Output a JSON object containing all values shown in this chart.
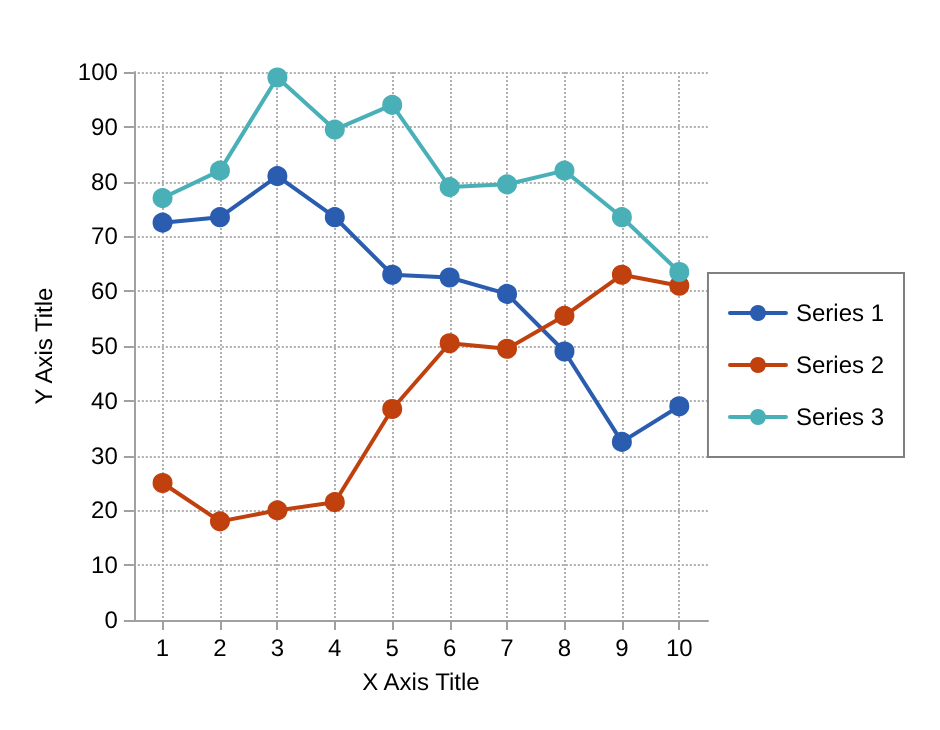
{
  "chart_data": {
    "type": "line",
    "xlabel": "X Axis Title",
    "ylabel": "Y Axis Title",
    "x": [
      1,
      2,
      3,
      4,
      5,
      6,
      7,
      8,
      9,
      10
    ],
    "xlim": [
      0.5,
      10.5
    ],
    "xticks": [
      1,
      2,
      3,
      4,
      5,
      6,
      7,
      8,
      9,
      10
    ],
    "ylim": [
      0,
      100
    ],
    "yticks": [
      0,
      10,
      20,
      30,
      40,
      50,
      60,
      70,
      80,
      90,
      100
    ],
    "grid": true,
    "legend": "right",
    "marker": "circle",
    "line_style": "solid",
    "series": [
      {
        "name": "Series 1",
        "color": "#2a5cb0",
        "values": [
          72.5,
          73.5,
          81,
          73.5,
          63,
          62.5,
          59.5,
          49,
          32.5,
          39
        ]
      },
      {
        "name": "Series 2",
        "color": "#c0400e",
        "values": [
          25,
          18,
          20,
          21.5,
          38.5,
          50.5,
          49.5,
          55.5,
          63,
          61
        ]
      },
      {
        "name": "Series 3",
        "color": "#4ab0b8",
        "values": [
          77,
          82,
          99,
          89.5,
          94,
          79,
          79.5,
          82,
          73.5,
          63.5
        ]
      }
    ]
  }
}
